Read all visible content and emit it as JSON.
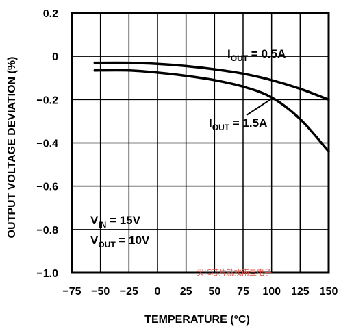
{
  "chart_data": {
    "type": "line",
    "title": "",
    "xlabel": "TEMPERATURE (°C)",
    "ylabel": "OUTPUT VOLTAGE DEVIATION (%)",
    "xlim": [
      -75,
      150
    ],
    "ylim": [
      -1.0,
      0.2
    ],
    "x_ticks": [
      "-75",
      "-50",
      "-25",
      "0",
      "25",
      "50",
      "75",
      "100",
      "125",
      "150"
    ],
    "y_ticks": [
      "0.2",
      "0",
      "-0.2",
      "-0.4",
      "-0.6",
      "-0.8",
      "-1.0"
    ],
    "grid": true,
    "series": [
      {
        "name": "IOUT = 0.5A",
        "x": [
          -55,
          -25,
          0,
          25,
          50,
          75,
          100,
          125,
          150
        ],
        "y": [
          -0.03,
          -0.03,
          -0.035,
          -0.045,
          -0.06,
          -0.08,
          -0.11,
          -0.15,
          -0.2
        ]
      },
      {
        "name": "IOUT = 1.5A",
        "x": [
          -55,
          -25,
          0,
          25,
          50,
          75,
          100,
          125,
          150
        ],
        "y": [
          -0.065,
          -0.065,
          -0.075,
          -0.09,
          -0.11,
          -0.14,
          -0.19,
          -0.29,
          -0.44
        ]
      }
    ],
    "annotations": {
      "s1": {
        "prefix": "I",
        "sub": "OUT",
        "suffix": " = 0.5A"
      },
      "s2": {
        "prefix": "I",
        "sub": "OUT",
        "suffix": " = 1.5A"
      },
      "vin": {
        "prefix": "V",
        "sub": "IN",
        "suffix": " = 15V"
      },
      "vout": {
        "prefix": "V",
        "sub": "OUT",
        "suffix": " = 10V"
      }
    },
    "watermark": "买IC芯片就找南皇电子"
  }
}
